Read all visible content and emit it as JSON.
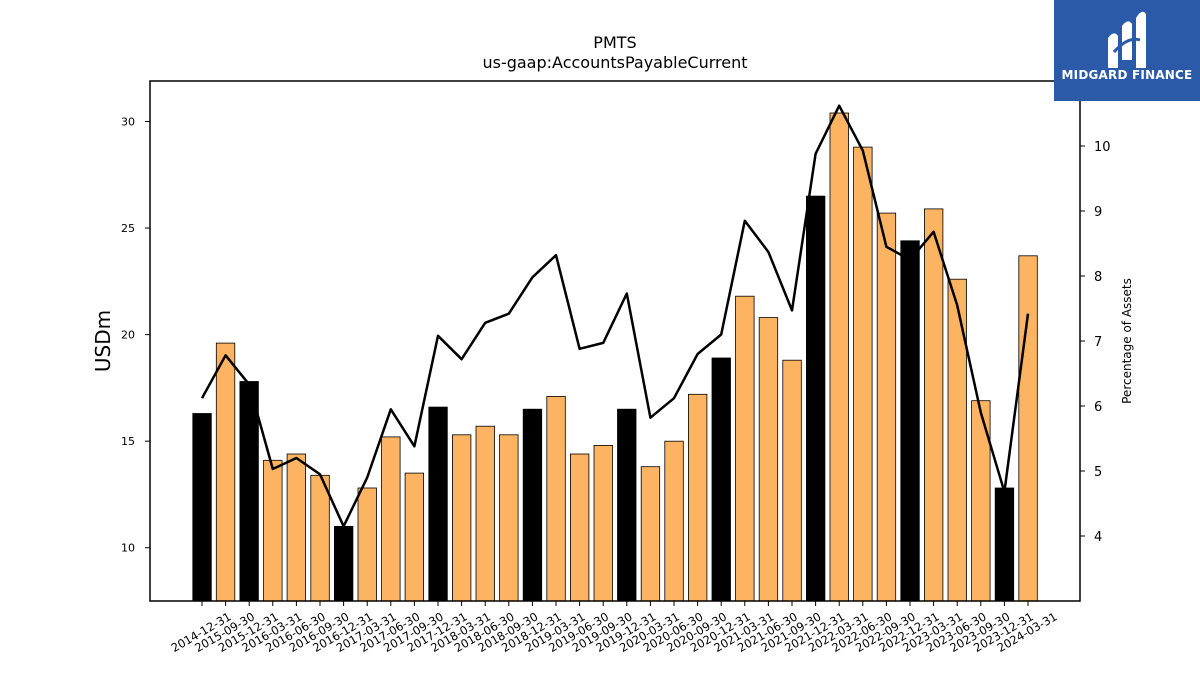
{
  "brand": {
    "name": "MIDGARD FINANCE"
  },
  "chart_data": {
    "type": "bar",
    "title": "PMTS",
    "subtitle": "us-gaap:AccountsPayableCurrent",
    "ylabel": "USDm",
    "y2label": "Percentage of Assets",
    "ylim": [
      7.5,
      31.9
    ],
    "y2lim": [
      3.0,
      11.0
    ],
    "yticks": [
      10,
      15,
      20,
      25,
      30
    ],
    "y2ticks": [
      4,
      5,
      6,
      7,
      8,
      9,
      10
    ],
    "colors": {
      "annual": "#000000",
      "quarterly": "#fdb462",
      "line": "#000000"
    },
    "categories": [
      "2014-12-31",
      "2015-09-30",
      "2015-12-31",
      "2016-03-31",
      "2016-06-30",
      "2016-09-30",
      "2016-12-31",
      "2017-03-31",
      "2017-06-30",
      "2017-09-30",
      "2017-12-31",
      "2018-03-31",
      "2018-06-30",
      "2018-09-30",
      "2018-12-31",
      "2019-03-31",
      "2019-06-30",
      "2019-09-30",
      "2019-12-31",
      "2020-03-31",
      "2020-06-30",
      "2020-09-30",
      "2020-12-31",
      "2021-03-31",
      "2021-06-30",
      "2021-09-30",
      "2021-12-31",
      "2022-03-31",
      "2022-06-30",
      "2022-09-30",
      "2022-12-31",
      "2023-03-31",
      "2023-06-30",
      "2023-09-30",
      "2023-12-31",
      "2024-03-31"
    ],
    "series": [
      {
        "values": [
          16.3,
          19.6,
          17.8,
          14.1,
          14.4,
          13.4,
          11.0,
          12.8,
          15.2,
          13.5,
          16.6,
          15.3,
          15.7,
          15.3,
          16.5,
          17.1,
          14.4,
          14.8,
          16.5,
          13.8,
          15.0,
          17.2,
          18.9,
          21.8,
          20.8,
          18.8,
          26.5,
          30.4,
          28.8,
          25.7,
          24.4,
          25.9,
          22.6,
          16.9,
          12.8,
          23.7
        ],
        "annual": [
          true,
          false,
          true,
          false,
          false,
          false,
          true,
          false,
          false,
          false,
          true,
          false,
          false,
          false,
          true,
          false,
          false,
          false,
          true,
          false,
          false,
          false,
          true,
          false,
          false,
          false,
          true,
          false,
          false,
          false,
          true,
          false,
          false,
          false,
          true,
          false
        ]
      },
      {
        "values": [
          6.12,
          6.78,
          6.33,
          5.03,
          5.2,
          4.95,
          4.15,
          4.9,
          5.95,
          5.38,
          7.08,
          6.72,
          7.28,
          7.42,
          7.98,
          8.32,
          6.88,
          6.97,
          7.73,
          5.82,
          6.12,
          6.8,
          7.1,
          8.85,
          8.37,
          7.47,
          9.88,
          10.62,
          9.93,
          8.45,
          8.25,
          8.68,
          7.55,
          5.9,
          4.68,
          7.42
        ]
      }
    ]
  }
}
